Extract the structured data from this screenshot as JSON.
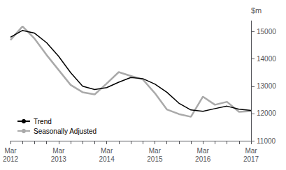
{
  "chart_data": {
    "type": "line",
    "ylabel": "$m",
    "categories": [
      "Mar\n2012",
      null,
      null,
      null,
      "Mar\n2013",
      null,
      null,
      null,
      "Mar\n2014",
      null,
      null,
      null,
      "Mar\n2015",
      null,
      null,
      null,
      "Mar\n2016",
      null,
      null,
      null,
      "Mar\n2017"
    ],
    "series": [
      {
        "name": "Seasonally Adjusted",
        "color": "#aaaaaa",
        "values": [
          14700,
          15200,
          14750,
          14150,
          13600,
          13050,
          12780,
          12700,
          13100,
          13520,
          13380,
          13250,
          12750,
          12150,
          11980,
          11880,
          12620,
          12320,
          12430,
          12060,
          12090
        ]
      },
      {
        "name": "Trend",
        "color": "#000000",
        "values": [
          14800,
          15050,
          14950,
          14600,
          14100,
          13500,
          13000,
          12880,
          12950,
          13150,
          13320,
          13280,
          13080,
          12780,
          12380,
          12130,
          12080,
          12180,
          12270,
          12160,
          12110
        ]
      }
    ],
    "ylim": [
      11000,
      15400
    ],
    "yticks": [
      11000,
      12000,
      13000,
      14000,
      15000
    ],
    "legend": "lower left",
    "grid": false
  }
}
